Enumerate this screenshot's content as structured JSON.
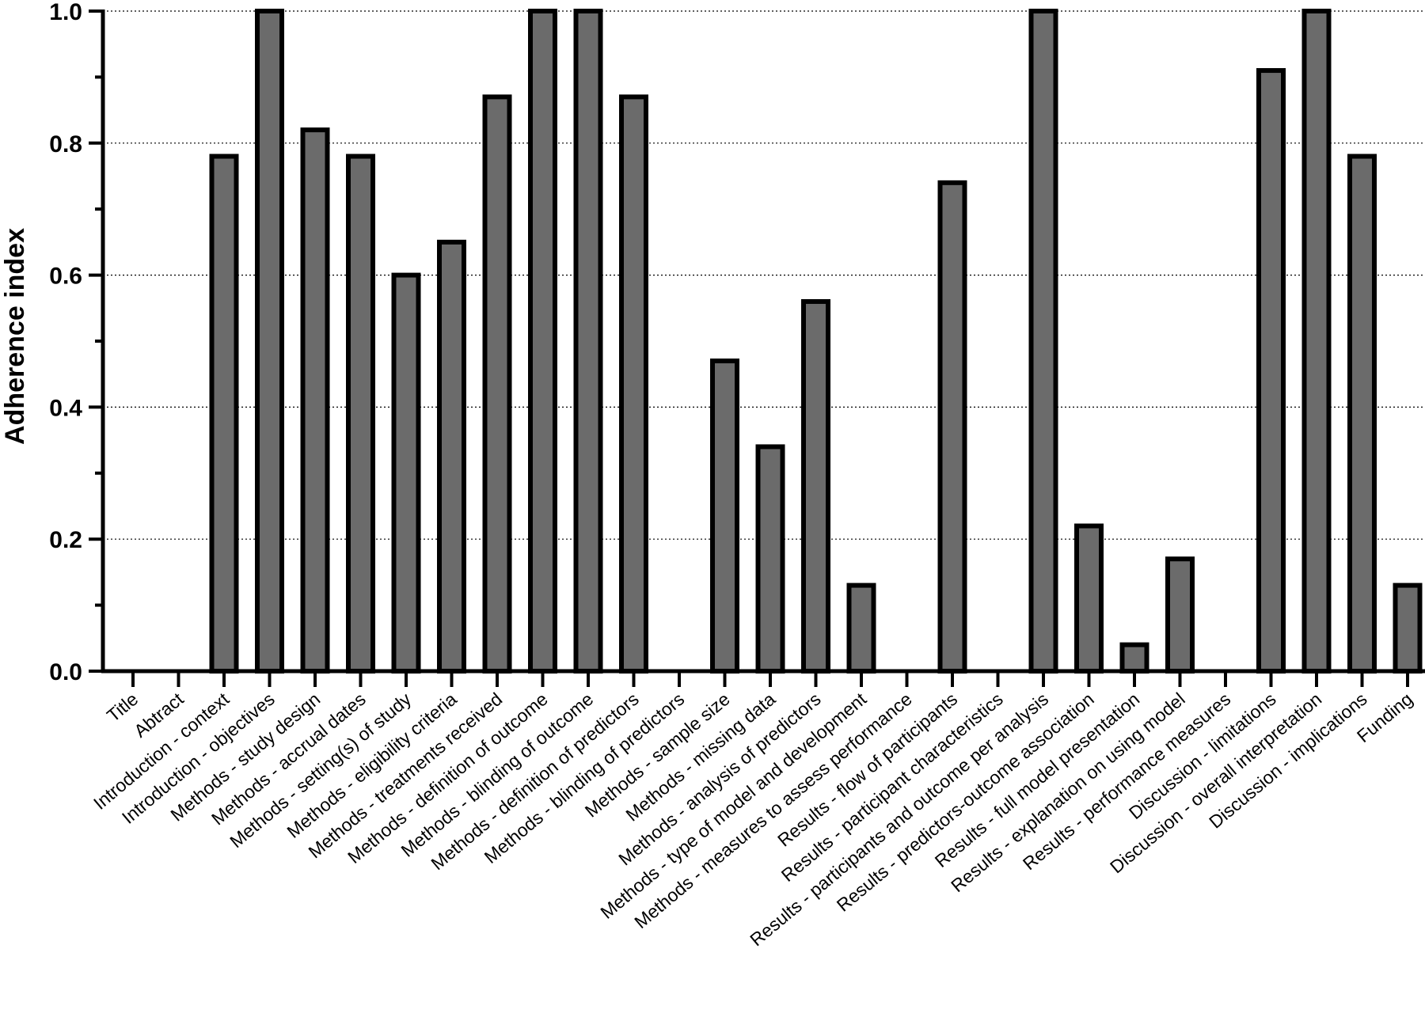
{
  "chart_data": {
    "type": "bar",
    "title": "",
    "xlabel": "",
    "ylabel": "Adherence index",
    "ylim": [
      0,
      1.0
    ],
    "yticks": [
      "0.0",
      "0.2",
      "0.4",
      "0.6",
      "0.8",
      "1.0"
    ],
    "grid": "horizontal dotted",
    "bar_color": "#6b6b6b",
    "categories": [
      "Title",
      "Abtract",
      "Introduction - context",
      "Introduction - objectives",
      "Methods - study design",
      "Methods - accrual dates",
      "Methods - setting(s) of study",
      "Methods - eligibility criteria",
      "Methods - treatments received",
      "Methods - definition of outcome",
      "Methods - blinding of outcome",
      "Methods - definition of predictors",
      "Methods - blinding of predictors",
      "Methods - sample size",
      "Methods - missing data",
      "Methods - analysis of predictors",
      "Methods - type of model and development",
      "Methods - measures to assess performance",
      "Results - flow of participants",
      "Results - participant characteristics",
      "Results - participants and outcome per analysis",
      "Results - predictors-outcome association",
      "Results - full model presentation",
      "Results - explanation on using model",
      "Results - performance measures",
      "Discussion - limitations",
      "Discussion - overall interpretation",
      "Discussion - implications",
      "Funding"
    ],
    "values": [
      0,
      0,
      0.78,
      1.0,
      0.82,
      0.78,
      0.6,
      0.65,
      0.87,
      1.0,
      1.0,
      0.87,
      0,
      0.47,
      0.34,
      0.56,
      0.13,
      0,
      0.74,
      0,
      1.0,
      0.22,
      0.04,
      0.17,
      0,
      0.91,
      1.0,
      0.78,
      0.13
    ]
  }
}
